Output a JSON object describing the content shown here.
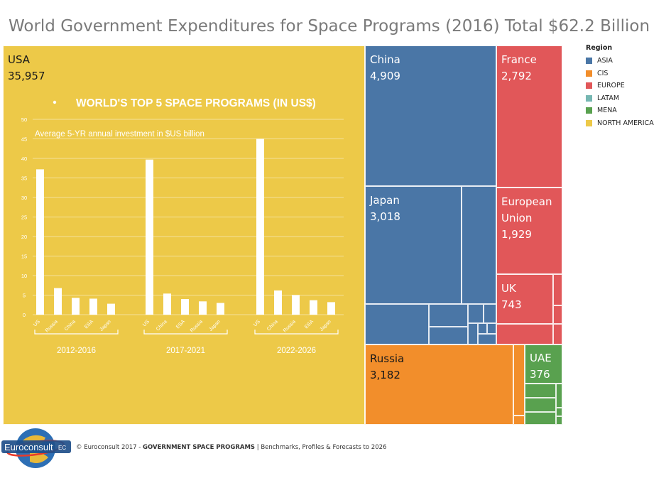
{
  "title": "World Government Expenditures for Space Programs (2016) Total $62.2 Billion",
  "legend": {
    "title": "Region",
    "items": [
      {
        "label": "ASIA",
        "color": "#4a76a6"
      },
      {
        "label": "CIS",
        "color": "#f28e2b"
      },
      {
        "label": "EUROPE",
        "color": "#e15759"
      },
      {
        "label": "LATAM",
        "color": "#76b7b2"
      },
      {
        "label": "MENA",
        "color": "#59a14f"
      },
      {
        "label": "NORTH AMERICA",
        "color": "#edc948"
      }
    ]
  },
  "tiles": [
    {
      "name": "USA",
      "value": "35,957",
      "region": "NORTH AMERICA"
    },
    {
      "name": "China",
      "value": "4,909",
      "region": "ASIA"
    },
    {
      "name": "France",
      "value": "2,792",
      "region": "EUROPE"
    },
    {
      "name": "Japan",
      "value": "3,018",
      "region": "ASIA"
    },
    {
      "name": "European Union",
      "value": "1,929",
      "region": "EUROPE"
    },
    {
      "name": "UK",
      "value": "743",
      "region": "EUROPE"
    },
    {
      "name": "Russia",
      "value": "3,182",
      "region": "CIS"
    },
    {
      "name": "UAE",
      "value": "376",
      "region": "MENA"
    }
  ],
  "chart_data": {
    "type": "bar",
    "title": "WORLD'S TOP 5 SPACE PROGRAMS (IN US$)",
    "subtitle": "Average 5-YR annual investment in $US billion",
    "ylim": [
      0,
      50
    ],
    "yticks": [
      0,
      5,
      10,
      15,
      20,
      25,
      30,
      35,
      40,
      45,
      50
    ],
    "groups": [
      {
        "label": "2012-2016",
        "categories": [
          "US",
          "Russia",
          "China",
          "ESA",
          "Japan"
        ],
        "values": [
          37.2,
          6.8,
          4.3,
          4.1,
          2.8
        ]
      },
      {
        "label": "2017-2021",
        "categories": [
          "US",
          "China",
          "ESA",
          "Russia",
          "Japan"
        ],
        "values": [
          39.7,
          5.4,
          4.0,
          3.4,
          3.0
        ]
      },
      {
        "label": "2022-2026",
        "categories": [
          "US",
          "China",
          "Russia",
          "ESA",
          "Japan"
        ],
        "values": [
          45.0,
          6.2,
          5.0,
          3.7,
          3.2
        ]
      }
    ]
  },
  "footer": {
    "logo": "Euroconsult",
    "logo_mark": "EC",
    "copyright": "© Euroconsult 2017 - ",
    "report": "GOVERNMENT SPACE PROGRAMS",
    "rest": " | Benchmarks, Profiles & Forecasts to 2026"
  }
}
